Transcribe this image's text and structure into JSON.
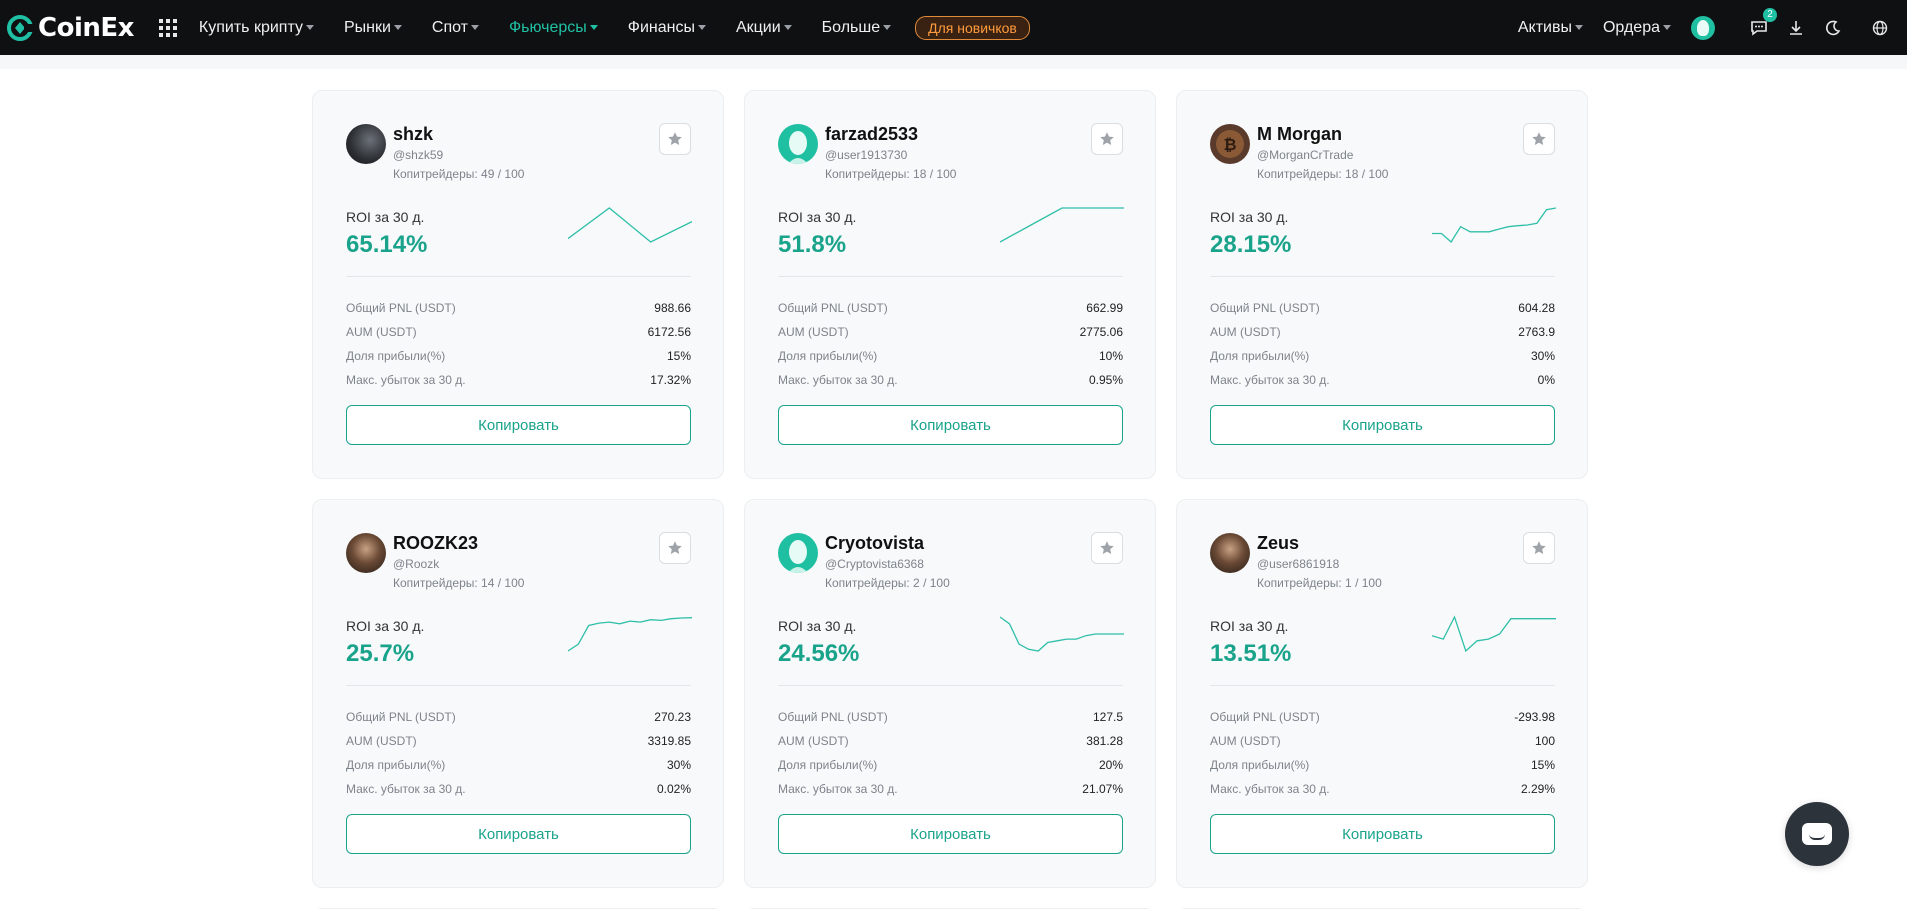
{
  "header": {
    "brand": "CoinEx",
    "nav": [
      {
        "label": "Купить крипту",
        "active": false
      },
      {
        "label": "Рынки",
        "active": false
      },
      {
        "label": "Спот",
        "active": false
      },
      {
        "label": "Фьючерсы",
        "active": true
      },
      {
        "label": "Финансы",
        "active": false
      },
      {
        "label": "Акции",
        "active": false
      },
      {
        "label": "Больше",
        "active": false
      }
    ],
    "newbie_label": "Для новичков",
    "assets_label": "Активы",
    "orders_label": "Ордера",
    "notification_count": "2",
    "accent": "#20c0a4"
  },
  "cards": [
    {
      "name": "shzk",
      "handle": "@shzk59",
      "copiers_label": "Копитрейдеры: 49 / 100",
      "roi_label": "ROI за 30 д.",
      "roi": "65.14%",
      "stats": [
        {
          "k": "Общий PNL (USDT)",
          "v": "988.66"
        },
        {
          "k": "AUM (USDT)",
          "v": "6172.56"
        },
        {
          "k": "Доля прибыли(%)",
          "v": "15%"
        },
        {
          "k": "Макс. убыток за 30 д.",
          "v": "17.32%"
        }
      ],
      "copy_label": "Копировать",
      "avatar": "dark-photo",
      "spark": [
        0.1,
        1.0,
        0.0,
        0.6
      ]
    },
    {
      "name": "farzad2533",
      "handle": "@user1913730",
      "copiers_label": "Копитрейдеры: 18 / 100",
      "roi_label": "ROI за 30 д.",
      "roi": "51.8%",
      "stats": [
        {
          "k": "Общий PNL (USDT)",
          "v": "662.99"
        },
        {
          "k": "AUM (USDT)",
          "v": "2775.06"
        },
        {
          "k": "Доля прибыли(%)",
          "v": "10%"
        },
        {
          "k": "Макс. убыток за 30 д.",
          "v": "0.95%"
        }
      ],
      "copy_label": "Копировать",
      "avatar": "default-teal",
      "spark": [
        0.0,
        0.5,
        1.0,
        1.0,
        1.0
      ]
    },
    {
      "name": "M Morgan",
      "handle": "@MorganCrTrade",
      "copiers_label": "Копитрейдеры: 18 / 100",
      "roi_label": "ROI за 30 д.",
      "roi": "28.15%",
      "stats": [
        {
          "k": "Общий PNL (USDT)",
          "v": "604.28"
        },
        {
          "k": "AUM (USDT)",
          "v": "2763.9"
        },
        {
          "k": "Доля прибыли(%)",
          "v": "30%"
        },
        {
          "k": "Макс. убыток за 30 д.",
          "v": "0%"
        }
      ],
      "copy_label": "Копировать",
      "avatar": "bitcoin",
      "spark": [
        0.25,
        0.25,
        0.0,
        0.45,
        0.3,
        0.3,
        0.3,
        0.38,
        0.45,
        0.48,
        0.5,
        0.55,
        0.95,
        1.0
      ]
    },
    {
      "name": "ROOZK23",
      "handle": "@Roozk",
      "copiers_label": "Копитрейдеры: 14 / 100",
      "roi_label": "ROI за 30 д.",
      "roi": "25.7%",
      "stats": [
        {
          "k": "Общий PNL (USDT)",
          "v": "270.23"
        },
        {
          "k": "AUM (USDT)",
          "v": "3319.85"
        },
        {
          "k": "Доля прибыли(%)",
          "v": "30%"
        },
        {
          "k": "Макс. убыток за 30 д.",
          "v": "0.02%"
        }
      ],
      "copy_label": "Копировать",
      "avatar": "face-photo",
      "spark": [
        0.0,
        0.2,
        0.75,
        0.82,
        0.85,
        0.8,
        0.88,
        0.85,
        0.92,
        0.9,
        0.95,
        0.97,
        0.98
      ]
    },
    {
      "name": "Cryotovista",
      "handle": "@Cryptovista6368",
      "copiers_label": "Копитрейдеры: 2 / 100",
      "roi_label": "ROI за 30 д.",
      "roi": "24.56%",
      "stats": [
        {
          "k": "Общий PNL (USDT)",
          "v": "127.5"
        },
        {
          "k": "AUM (USDT)",
          "v": "381.28"
        },
        {
          "k": "Доля прибыли(%)",
          "v": "20%"
        },
        {
          "k": "Макс. убыток за 30 д.",
          "v": "21.07%"
        }
      ],
      "copy_label": "Копировать",
      "avatar": "default-teal",
      "spark": [
        1.0,
        0.8,
        0.2,
        0.05,
        0.0,
        0.25,
        0.3,
        0.35,
        0.35,
        0.45,
        0.5,
        0.5,
        0.5,
        0.5
      ]
    },
    {
      "name": "Zeus",
      "handle": "@user6861918",
      "copiers_label": "Копитрейдеры: 1 / 100",
      "roi_label": "ROI за 30 д.",
      "roi": "13.51%",
      "stats": [
        {
          "k": "Общий PNL (USDT)",
          "v": "-293.98"
        },
        {
          "k": "AUM (USDT)",
          "v": "100"
        },
        {
          "k": "Доля прибыли(%)",
          "v": "15%"
        },
        {
          "k": "Макс. убыток за 30 д.",
          "v": "2.29%"
        }
      ],
      "copy_label": "Копировать",
      "avatar": "face-photo",
      "spark": [
        0.45,
        0.35,
        1.0,
        0.0,
        0.3,
        0.35,
        0.5,
        0.95,
        0.95,
        0.95,
        0.95,
        0.95
      ]
    }
  ]
}
